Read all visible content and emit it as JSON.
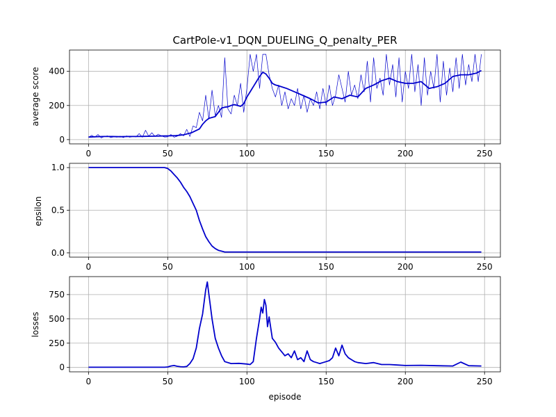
{
  "figure": {
    "title": "CartPole-v1_DQN_DUELING_Q_penalty_PER",
    "xlabel": "episode"
  },
  "colors": {
    "series": "#0000cc",
    "grid": "#b0b0b0"
  },
  "chart_data": [
    {
      "type": "line",
      "ylabel": "average score",
      "xlim": [
        -12,
        260
      ],
      "ylim": [
        -25,
        525
      ],
      "xticks": [
        0,
        50,
        100,
        150,
        200,
        250
      ],
      "yticks": [
        0,
        200,
        400
      ],
      "grid": true,
      "series": [
        {
          "role": "raw",
          "x": [
            0,
            2,
            4,
            6,
            8,
            10,
            12,
            14,
            16,
            18,
            20,
            22,
            24,
            26,
            28,
            30,
            32,
            34,
            36,
            38,
            40,
            42,
            44,
            46,
            48,
            50,
            52,
            54,
            56,
            58,
            60,
            62,
            64,
            66,
            68,
            70,
            72,
            74,
            76,
            78,
            80,
            82,
            84,
            86,
            88,
            90,
            92,
            94,
            96,
            98,
            100,
            102,
            104,
            106,
            108,
            110,
            112,
            114,
            116,
            118,
            120,
            122,
            124,
            126,
            128,
            130,
            132,
            134,
            136,
            138,
            140,
            142,
            144,
            146,
            148,
            150,
            152,
            154,
            156,
            158,
            160,
            162,
            164,
            166,
            168,
            170,
            172,
            174,
            176,
            178,
            180,
            182,
            184,
            186,
            188,
            190,
            192,
            194,
            196,
            198,
            200,
            202,
            204,
            206,
            208,
            210,
            212,
            214,
            216,
            218,
            220,
            222,
            224,
            226,
            228,
            230,
            232,
            234,
            236,
            238,
            240,
            242,
            244,
            246,
            248
          ],
          "y": [
            12,
            25,
            14,
            30,
            10,
            18,
            22,
            12,
            16,
            14,
            20,
            12,
            22,
            14,
            18,
            16,
            35,
            14,
            55,
            20,
            40,
            18,
            32,
            22,
            15,
            16,
            30,
            14,
            20,
            35,
            22,
            60,
            18,
            80,
            70,
            160,
            110,
            260,
            120,
            290,
            140,
            200,
            130,
            480,
            180,
            150,
            260,
            200,
            330,
            160,
            300,
            500,
            400,
            500,
            300,
            500,
            500,
            380,
            300,
            250,
            320,
            200,
            280,
            180,
            240,
            200,
            300,
            180,
            260,
            160,
            240,
            200,
            280,
            180,
            300,
            200,
            320,
            200,
            260,
            380,
            300,
            220,
            400,
            260,
            320,
            240,
            380,
            280,
            460,
            220,
            480,
            300,
            360,
            260,
            500,
            320,
            440,
            250,
            480,
            220,
            400,
            300,
            500,
            280,
            440,
            200,
            480,
            260,
            400,
            300,
            500,
            220,
            460,
            260,
            420,
            280,
            480,
            300,
            500,
            320,
            440,
            340,
            500,
            340,
            500
          ]
        },
        {
          "role": "average",
          "x": [
            0,
            5,
            10,
            15,
            20,
            25,
            30,
            35,
            40,
            45,
            50,
            55,
            60,
            65,
            70,
            72,
            74,
            76,
            78,
            80,
            82,
            84,
            86,
            88,
            90,
            92,
            94,
            96,
            98,
            100,
            102,
            104,
            106,
            108,
            110,
            112,
            114,
            116,
            118,
            120,
            125,
            130,
            135,
            140,
            145,
            150,
            155,
            160,
            165,
            170,
            175,
            180,
            185,
            190,
            195,
            200,
            205,
            210,
            215,
            220,
            225,
            230,
            235,
            240,
            245,
            248
          ],
          "y": [
            15,
            17,
            18,
            18,
            17,
            18,
            18,
            19,
            20,
            21,
            22,
            23,
            28,
            40,
            62,
            90,
            110,
            125,
            130,
            135,
            160,
            185,
            190,
            192,
            200,
            205,
            200,
            195,
            210,
            250,
            280,
            310,
            340,
            370,
            395,
            385,
            360,
            330,
            320,
            315,
            300,
            280,
            260,
            240,
            215,
            220,
            250,
            240,
            260,
            250,
            300,
            320,
            345,
            360,
            340,
            330,
            330,
            340,
            300,
            310,
            330,
            370,
            380,
            380,
            390,
            405
          ]
        }
      ]
    },
    {
      "type": "line",
      "ylabel": "epsilon",
      "xlim": [
        -12,
        260
      ],
      "ylim": [
        -0.05,
        1.05
      ],
      "xticks": [
        0,
        50,
        100,
        150,
        200,
        250
      ],
      "yticks": [
        0.0,
        0.5,
        1.0
      ],
      "ytick_labels": [
        "0.0",
        "0.5",
        "1.0"
      ],
      "grid": true,
      "series": [
        {
          "x": [
            0,
            10,
            20,
            30,
            40,
            48,
            50,
            52,
            54,
            56,
            58,
            60,
            62,
            64,
            66,
            68,
            70,
            72,
            74,
            76,
            78,
            80,
            82,
            84,
            86,
            88,
            90,
            100,
            150,
            200,
            248
          ],
          "y": [
            1.0,
            1.0,
            1.0,
            1.0,
            1.0,
            1.0,
            0.99,
            0.96,
            0.92,
            0.88,
            0.83,
            0.77,
            0.72,
            0.66,
            0.58,
            0.5,
            0.38,
            0.28,
            0.19,
            0.13,
            0.08,
            0.05,
            0.03,
            0.02,
            0.01,
            0.01,
            0.01,
            0.01,
            0.01,
            0.01,
            0.01
          ]
        }
      ]
    },
    {
      "type": "line",
      "ylabel": "losses",
      "xlim": [
        -12,
        260
      ],
      "ylim": [
        -45,
        935
      ],
      "xticks": [
        0,
        50,
        100,
        150,
        200,
        250
      ],
      "yticks": [
        0,
        250,
        500,
        750
      ],
      "grid": true,
      "series": [
        {
          "x": [
            0,
            10,
            20,
            30,
            40,
            48,
            50,
            52,
            54,
            56,
            58,
            60,
            62,
            64,
            66,
            68,
            70,
            72,
            74,
            75,
            76,
            78,
            80,
            82,
            84,
            86,
            90,
            95,
            100,
            102,
            104,
            106,
            108,
            109,
            110,
            111,
            112,
            113,
            114,
            116,
            118,
            120,
            122,
            124,
            126,
            128,
            130,
            132,
            134,
            136,
            138,
            140,
            142,
            144,
            146,
            148,
            150,
            152,
            154,
            156,
            158,
            160,
            162,
            164,
            166,
            168,
            170,
            175,
            180,
            185,
            190,
            195,
            200,
            210,
            220,
            230,
            235,
            240,
            248
          ],
          "y": [
            2,
            2,
            2,
            2,
            2,
            2,
            5,
            15,
            20,
            12,
            8,
            6,
            10,
            40,
            90,
            200,
            400,
            550,
            800,
            880,
            750,
            500,
            300,
            200,
            120,
            60,
            40,
            42,
            35,
            30,
            60,
            300,
            500,
            620,
            560,
            700,
            640,
            420,
            520,
            300,
            260,
            200,
            160,
            120,
            140,
            100,
            170,
            80,
            100,
            60,
            170,
            80,
            60,
            50,
            40,
            50,
            60,
            70,
            100,
            200,
            120,
            230,
            140,
            100,
            80,
            60,
            50,
            40,
            50,
            30,
            30,
            25,
            20,
            22,
            18,
            15,
            55,
            18,
            15
          ]
        }
      ]
    }
  ]
}
